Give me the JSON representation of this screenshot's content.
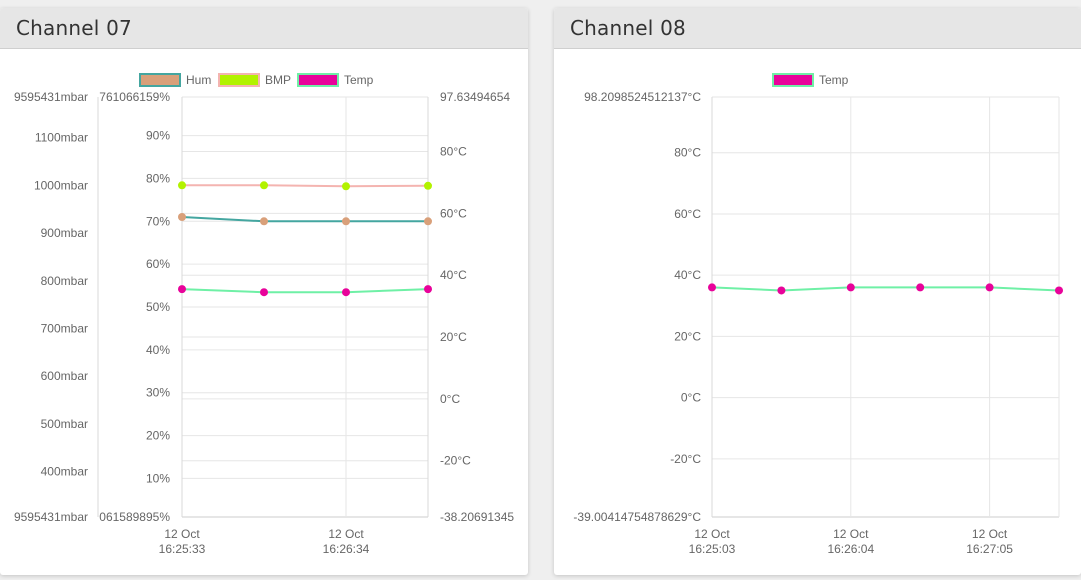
{
  "channels": [
    {
      "title": "Channel 07",
      "chart_data": {
        "type": "line",
        "x": [
          "12 Oct 16:25:33",
          "",
          "12 Oct 16:26:34",
          ""
        ],
        "x_ticks": [
          {
            "date": "12 Oct",
            "time": "16:25:33"
          },
          {
            "date": "12 Oct",
            "time": "16:26:34"
          }
        ],
        "legend_position": "top",
        "grid": true,
        "axes": {
          "pressure": {
            "side": "left-outer",
            "ticks": [
              "1100mbar",
              "1000mbar",
              "900mbar",
              "800mbar",
              "700mbar",
              "600mbar",
              "500mbar",
              "400mbar"
            ],
            "tick_values": [
              1100,
              1000,
              900,
              800,
              700,
              600,
              500,
              400
            ],
            "max_label": "9595431mbar",
            "min_label": "9595431mbar",
            "range": [
              305,
              1185
            ]
          },
          "humidity": {
            "side": "left-inner",
            "ticks": [
              "90%",
              "80%",
              "70%",
              "60%",
              "50%",
              "40%",
              "30%",
              "20%",
              "10%"
            ],
            "tick_values": [
              90,
              80,
              70,
              60,
              50,
              40,
              30,
              20,
              10
            ],
            "max_label": "761066159%",
            "min_label": "061589895%",
            "range": [
              1,
              99
            ]
          },
          "temperature": {
            "side": "right",
            "ticks": [
              "80°C",
              "60°C",
              "40°C",
              "20°C",
              "0°C",
              "-20°C"
            ],
            "tick_values": [
              80,
              60,
              40,
              20,
              0,
              -20
            ],
            "max_label": "97.63494654",
            "min_label": "-38.20691345",
            "range": [
              -38.20691345,
              97.63494654
            ]
          }
        },
        "series": [
          {
            "name": "Hum",
            "axis": "humidity",
            "values": [
              71,
              70,
              70,
              70
            ],
            "line_color": "#44a6a0",
            "point_color": "#d9a07a"
          },
          {
            "name": "BMP",
            "axis": "pressure",
            "values": [
              1000,
              1000,
              998,
              999
            ],
            "line_color": "#f4b4b0",
            "point_color": "#b2f200"
          },
          {
            "name": "Temp",
            "axis": "temperature",
            "values": [
              35.5,
              34.5,
              34.5,
              35.5
            ],
            "line_color": "#6ff0a6",
            "point_color": "#e8039a"
          }
        ],
        "legend": [
          {
            "name": "Hum",
            "fill": "#d9a07a",
            "border": "#44a6a0"
          },
          {
            "name": "BMP",
            "fill": "#b2f200",
            "border": "#f4b4b0"
          },
          {
            "name": "Temp",
            "fill": "#e8039a",
            "border": "#6ff0a6"
          }
        ]
      }
    },
    {
      "title": "Channel 08",
      "chart_data": {
        "type": "line",
        "x": [
          "12 Oct 16:25:03",
          "",
          "12 Oct 16:26:04",
          "",
          "12 Oct 16:27:05",
          ""
        ],
        "x_ticks": [
          {
            "date": "12 Oct",
            "time": "16:25:03"
          },
          {
            "date": "12 Oct",
            "time": "16:26:04"
          },
          {
            "date": "12 Oct",
            "time": "16:27:05"
          }
        ],
        "legend_position": "top",
        "grid": true,
        "axes": {
          "temperature": {
            "side": "left",
            "ticks": [
              "80°C",
              "60°C",
              "40°C",
              "20°C",
              "0°C",
              "-20°C"
            ],
            "tick_values": [
              80,
              60,
              40,
              20,
              0,
              -20
            ],
            "max_label": "98.2098524512137°C",
            "min_label": "-39.00414754878629°C",
            "range": [
              -39.00414754878629,
              98.2098524512137
            ]
          }
        },
        "series": [
          {
            "name": "Temp",
            "axis": "temperature",
            "values": [
              36,
              35,
              36,
              36,
              36,
              35
            ],
            "line_color": "#6ff0a6",
            "point_color": "#e8039a"
          }
        ],
        "legend": [
          {
            "name": "Temp",
            "fill": "#e8039a",
            "border": "#6ff0a6"
          }
        ]
      }
    }
  ]
}
